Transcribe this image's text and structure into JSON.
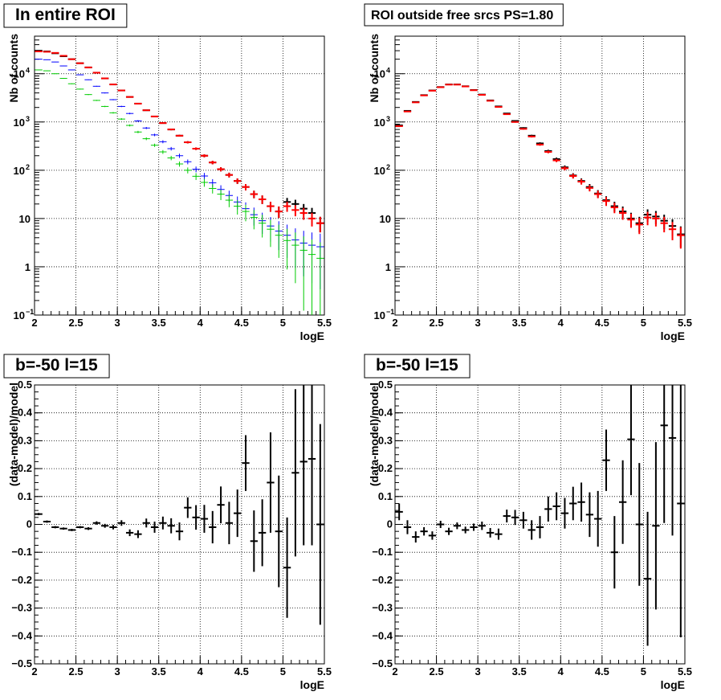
{
  "chart_data": [
    {
      "type": "scatter",
      "title": "In entire ROI",
      "xlabel": "logE",
      "ylabel": "Nb of counts",
      "xlim": [
        2,
        5.5
      ],
      "ylim": [
        0.1,
        60000
      ],
      "yscale": "log",
      "grid": true,
      "x_ticks": [
        "2",
        "2.5",
        "3",
        "3.5",
        "4",
        "4.5",
        "5",
        "5.5"
      ],
      "y_ticks": [
        {
          "v": 0.1,
          "base": "10",
          "exp": "−1"
        },
        {
          "v": 1,
          "base": "1",
          "exp": ""
        },
        {
          "v": 10,
          "base": "10",
          "exp": ""
        },
        {
          "v": 100,
          "base": "10",
          "exp": "2"
        },
        {
          "v": 1000,
          "base": "10",
          "exp": "3"
        },
        {
          "v": 10000,
          "base": "10",
          "exp": "4"
        }
      ],
      "series": [
        {
          "color": "#000000",
          "x": [
            2.05,
            2.15,
            2.25,
            2.35,
            2.45,
            2.55,
            2.65,
            2.75,
            2.85,
            2.95,
            3.05,
            3.15,
            3.25,
            3.35,
            3.45,
            3.55,
            3.65,
            3.75,
            3.85,
            3.95,
            4.05,
            4.15,
            4.25,
            4.35,
            4.45,
            4.55,
            4.65,
            4.75,
            4.85,
            4.95,
            5.05,
            5.15,
            5.25,
            5.35,
            5.45
          ],
          "y": [
            30000,
            29000,
            26500,
            23000,
            20000,
            16500,
            13500,
            10500,
            8000,
            6000,
            4500,
            3300,
            2400,
            1750,
            1300,
            950,
            700,
            520,
            380,
            280,
            200,
            145,
            105,
            80,
            60,
            45,
            32,
            25,
            18,
            14,
            22,
            20,
            16,
            13,
            8
          ]
        },
        {
          "color": "#ff0000",
          "x": [
            2.05,
            2.15,
            2.25,
            2.35,
            2.45,
            2.55,
            2.65,
            2.75,
            2.85,
            2.95,
            3.05,
            3.15,
            3.25,
            3.35,
            3.45,
            3.55,
            3.65,
            3.75,
            3.85,
            3.95,
            4.05,
            4.15,
            4.25,
            4.35,
            4.45,
            4.55,
            4.65,
            4.75,
            4.85,
            4.95,
            5.05,
            5.15,
            5.25,
            5.35,
            5.45
          ],
          "y": [
            29000,
            28500,
            27000,
            23500,
            20000,
            16500,
            13500,
            10500,
            8000,
            6000,
            4500,
            3300,
            2400,
            1750,
            1300,
            950,
            700,
            520,
            380,
            280,
            200,
            145,
            105,
            80,
            60,
            45,
            32,
            25,
            18,
            14,
            18,
            15,
            13,
            10,
            8
          ]
        },
        {
          "color": "#0000ff",
          "x": [
            2.05,
            2.15,
            2.25,
            2.35,
            2.45,
            2.55,
            2.65,
            2.75,
            2.85,
            2.95,
            3.05,
            3.15,
            3.25,
            3.35,
            3.45,
            3.55,
            3.65,
            3.75,
            3.85,
            3.95,
            4.05,
            4.15,
            4.25,
            4.35,
            4.45,
            4.55,
            4.65,
            4.75,
            4.85,
            4.95,
            5.05,
            5.15,
            5.25,
            5.35,
            5.45
          ],
          "y": [
            20000,
            19500,
            17500,
            14500,
            12000,
            9500,
            7500,
            5500,
            4000,
            2900,
            2100,
            1500,
            1050,
            750,
            540,
            390,
            280,
            200,
            150,
            105,
            76,
            55,
            40,
            30,
            22,
            16,
            12,
            9,
            7,
            5.5,
            4.5,
            3.6,
            3.1,
            2.8,
            2.6
          ]
        },
        {
          "color": "#00cc00",
          "x": [
            2.05,
            2.15,
            2.25,
            2.35,
            2.45,
            2.55,
            2.65,
            2.75,
            2.85,
            2.95,
            3.05,
            3.15,
            3.25,
            3.35,
            3.45,
            3.55,
            3.65,
            3.75,
            3.85,
            3.95,
            4.05,
            4.15,
            4.25,
            4.35,
            4.45,
            4.55,
            4.65,
            4.75,
            4.85,
            4.95,
            5.05,
            5.15,
            5.25,
            5.35,
            5.45
          ],
          "y": [
            12000,
            11500,
            10000,
            8000,
            6200,
            4800,
            3700,
            2800,
            2100,
            1550,
            1150,
            850,
            620,
            450,
            330,
            240,
            180,
            135,
            100,
            75,
            56,
            42,
            32,
            24,
            18,
            14,
            10.5,
            8,
            6,
            4.5,
            3.5,
            2.8,
            2.2,
            1.8,
            1.5
          ]
        }
      ]
    },
    {
      "type": "scatter",
      "title": "ROI outside free srcs PS=1.80",
      "xlabel": "logE",
      "ylabel": "Nb of counts",
      "xlim": [
        2,
        5.5
      ],
      "ylim": [
        0.1,
        60000
      ],
      "yscale": "log",
      "grid": true,
      "x_ticks": [
        "2",
        "2.5",
        "3",
        "3.5",
        "4",
        "4.5",
        "5",
        "5.5"
      ],
      "y_ticks": [
        {
          "v": 0.1,
          "base": "10",
          "exp": "−1"
        },
        {
          "v": 1,
          "base": "1",
          "exp": ""
        },
        {
          "v": 10,
          "base": "10",
          "exp": ""
        },
        {
          "v": 100,
          "base": "10",
          "exp": "2"
        },
        {
          "v": 1000,
          "base": "10",
          "exp": "3"
        },
        {
          "v": 10000,
          "base": "10",
          "exp": "4"
        }
      ],
      "series": [
        {
          "color": "#000000",
          "x": [
            2.05,
            2.15,
            2.25,
            2.35,
            2.45,
            2.55,
            2.65,
            2.75,
            2.85,
            2.95,
            3.05,
            3.15,
            3.25,
            3.35,
            3.45,
            3.55,
            3.65,
            3.75,
            3.85,
            3.95,
            4.05,
            4.15,
            4.25,
            4.35,
            4.45,
            4.55,
            4.65,
            4.75,
            4.85,
            4.95,
            5.05,
            5.15,
            5.25,
            5.35,
            5.45
          ],
          "y": [
            850,
            1700,
            2600,
            3600,
            4500,
            5300,
            6000,
            6000,
            5500,
            4600,
            3700,
            2800,
            2100,
            1500,
            1050,
            750,
            520,
            360,
            250,
            170,
            115,
            78,
            60,
            45,
            33,
            24,
            18,
            14,
            10,
            8,
            12,
            11,
            9,
            7,
            4.7
          ]
        },
        {
          "color": "#ff0000",
          "x": [
            2.05,
            2.15,
            2.25,
            2.35,
            2.45,
            2.55,
            2.65,
            2.75,
            2.85,
            2.95,
            3.05,
            3.15,
            3.25,
            3.35,
            3.45,
            3.55,
            3.65,
            3.75,
            3.85,
            3.95,
            4.05,
            4.15,
            4.25,
            4.35,
            4.45,
            4.55,
            4.65,
            4.75,
            4.85,
            4.95,
            5.05,
            5.15,
            5.25,
            5.35,
            5.45
          ],
          "y": [
            820,
            1650,
            2550,
            3550,
            4450,
            5250,
            5950,
            5950,
            5450,
            4550,
            3650,
            2750,
            2050,
            1450,
            1000,
            720,
            500,
            340,
            240,
            160,
            110,
            76,
            58,
            43,
            32,
            23,
            17,
            13,
            9.5,
            7.5,
            10.5,
            10,
            8,
            6,
            4.5
          ]
        }
      ]
    },
    {
      "type": "scatter",
      "title": "b=-50 l=15",
      "xlabel": "logE",
      "ylabel": "(data-model)/model",
      "xlim": [
        2,
        5.5
      ],
      "ylim": [
        -0.5,
        0.5
      ],
      "yscale": "linear",
      "grid": true,
      "x_ticks": [
        "2",
        "2.5",
        "3",
        "3.5",
        "4",
        "4.5",
        "5",
        "5.5"
      ],
      "y_ticks": [
        "−0.5",
        "−0.4",
        "−0.3",
        "−0.2",
        "−0.1",
        "0",
        "0.1",
        "0.2",
        "0.3",
        "0.4",
        "0.5"
      ],
      "series": [
        {
          "color": "#000000",
          "x": [
            2.05,
            2.15,
            2.25,
            2.35,
            2.45,
            2.55,
            2.65,
            2.75,
            2.85,
            2.95,
            3.05,
            3.15,
            3.25,
            3.35,
            3.45,
            3.55,
            3.65,
            3.75,
            3.85,
            3.95,
            4.05,
            4.15,
            4.25,
            4.35,
            4.45,
            4.55,
            4.65,
            4.75,
            4.85,
            4.95,
            5.05,
            5.15,
            5.25,
            5.35,
            5.45
          ],
          "y": [
            0.037,
            0.01,
            -0.01,
            -0.015,
            -0.02,
            -0.01,
            -0.015,
            0.005,
            -0.005,
            -0.01,
            0.005,
            -0.03,
            -0.035,
            0.005,
            -0.01,
            0.005,
            -0.005,
            -0.025,
            0.06,
            0.025,
            0.02,
            -0.01,
            0.07,
            0.005,
            0.04,
            0.22,
            -0.06,
            -0.03,
            0.15,
            -0.025,
            -0.155,
            0.185,
            0.225,
            0.235,
            0.0
          ],
          "err": [
            0.004,
            0.004,
            0.004,
            0.004,
            0.004,
            0.004,
            0.005,
            0.006,
            0.007,
            0.008,
            0.01,
            0.012,
            0.014,
            0.016,
            0.02,
            0.023,
            0.027,
            0.032,
            0.037,
            0.044,
            0.05,
            0.058,
            0.066,
            0.076,
            0.085,
            0.1,
            0.11,
            0.12,
            0.18,
            0.2,
            0.18,
            0.3,
            0.3,
            0.31,
            0.36
          ]
        }
      ]
    },
    {
      "type": "scatter",
      "title": "b=-50 l=15",
      "xlabel": "logE",
      "ylabel": "(data-model)/model",
      "xlim": [
        2,
        5.5
      ],
      "ylim": [
        -0.5,
        0.5
      ],
      "yscale": "linear",
      "grid": true,
      "x_ticks": [
        "2",
        "2.5",
        "3",
        "3.5",
        "4",
        "4.5",
        "5",
        "5.5"
      ],
      "y_ticks": [
        "−0.5",
        "−0.4",
        "−0.3",
        "−0.2",
        "−0.1",
        "0",
        "0.1",
        "0.2",
        "0.3",
        "0.4",
        "0.5"
      ],
      "series": [
        {
          "color": "#000000",
          "x": [
            2.05,
            2.15,
            2.25,
            2.35,
            2.45,
            2.55,
            2.65,
            2.75,
            2.85,
            2.95,
            3.05,
            3.15,
            3.25,
            3.35,
            3.45,
            3.55,
            3.65,
            3.75,
            3.85,
            3.95,
            4.05,
            4.15,
            4.25,
            4.35,
            4.45,
            4.55,
            4.65,
            4.75,
            4.85,
            4.95,
            5.05,
            5.15,
            5.25,
            5.35,
            5.45
          ],
          "y": [
            0.045,
            -0.01,
            -0.045,
            -0.025,
            -0.04,
            0.0,
            -0.025,
            -0.005,
            -0.02,
            -0.01,
            -0.005,
            -0.03,
            -0.035,
            0.03,
            0.025,
            0.015,
            -0.02,
            -0.01,
            0.055,
            0.065,
            0.04,
            0.075,
            0.08,
            0.035,
            0.02,
            0.23,
            -0.1,
            0.08,
            0.305,
            0.0,
            -0.195,
            -0.005,
            0.355,
            0.31,
            0.075
          ],
          "err": [
            0.03,
            0.025,
            0.02,
            0.015,
            0.015,
            0.013,
            0.013,
            0.012,
            0.012,
            0.013,
            0.015,
            0.017,
            0.02,
            0.023,
            0.027,
            0.03,
            0.035,
            0.04,
            0.045,
            0.05,
            0.055,
            0.06,
            0.07,
            0.08,
            0.1,
            0.11,
            0.13,
            0.15,
            0.2,
            0.22,
            0.24,
            0.3,
            0.35,
            0.35,
            0.48
          ]
        }
      ]
    }
  ]
}
